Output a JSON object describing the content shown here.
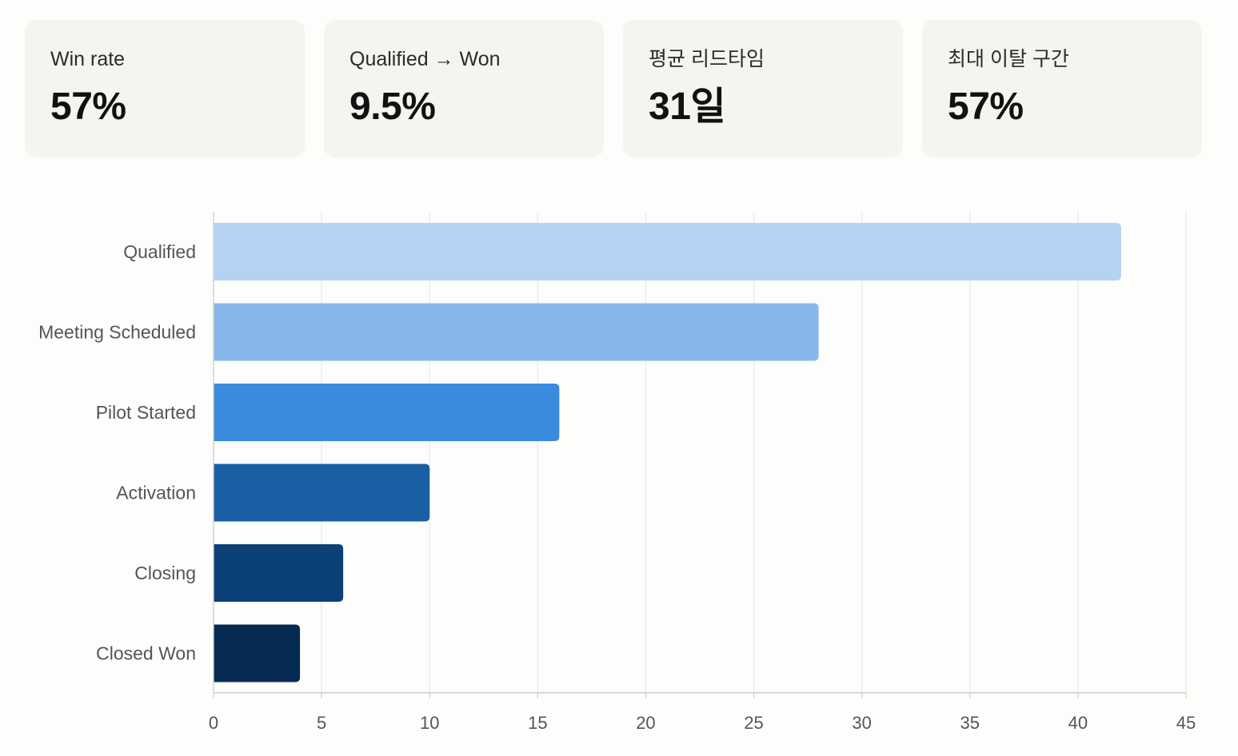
{
  "kpis": [
    {
      "label": "Win rate",
      "value": "57%"
    },
    {
      "label": "Qualified → Won",
      "value": "9.5%"
    },
    {
      "label": "평균 리드타임",
      "value": "31일"
    },
    {
      "label": "최대 이탈 구간",
      "value": "57%"
    }
  ],
  "chart_data": {
    "type": "bar",
    "orientation": "horizontal",
    "categories": [
      "Qualified",
      "Meeting Scheduled",
      "Pilot Started",
      "Activation",
      "Closing",
      "Closed Won"
    ],
    "values": [
      42,
      28,
      16,
      10,
      6,
      4
    ],
    "colors": [
      "#b4d3f3",
      "#87b7ea",
      "#3a8bdd",
      "#1a5ea3",
      "#0c4177",
      "#062a52"
    ],
    "xlim": [
      0,
      45
    ],
    "xticks": [
      0,
      5,
      10,
      15,
      20,
      25,
      30,
      35,
      40,
      45
    ],
    "grid": true,
    "title": "",
    "xlabel": "",
    "ylabel": ""
  }
}
